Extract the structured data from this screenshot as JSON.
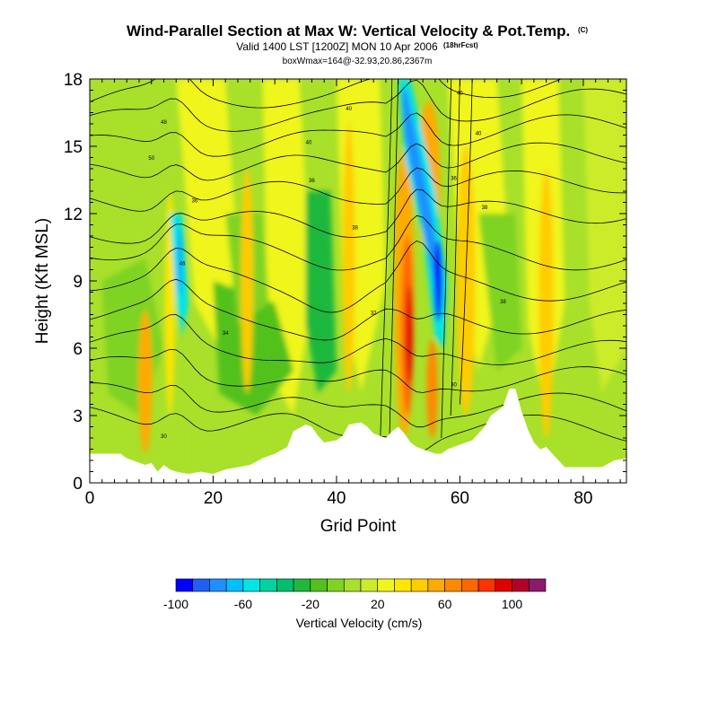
{
  "title": "Wind-Parallel Section at Max W: Vertical Velocity & Pot.Temp.",
  "title_mark": "(C)",
  "subtitle": "Valid 1400 LST [1200Z] MON 10 Apr 2006",
  "subtitle_mark": "(18hrFcst)",
  "subtitle2": "boxWmax=164@-32.93,20.86,2367m",
  "chart_data": {
    "type": "heatmap",
    "xlabel": "Grid Point",
    "ylabel": "Height (Kft MSL)",
    "xlim": [
      0,
      87
    ],
    "ylim": [
      0,
      18
    ],
    "xticks": [
      0,
      20,
      40,
      60,
      80
    ],
    "yticks": [
      0,
      3,
      6,
      9,
      12,
      15,
      18
    ],
    "colorbar": {
      "label": "Vertical Velocity (cm/s)",
      "tick_labels": [
        "-100",
        "-60",
        "-20",
        "20",
        "60",
        "100"
      ],
      "tick_values": [
        -100,
        -60,
        -20,
        20,
        60,
        100
      ],
      "bins": [
        -100,
        -90,
        -80,
        -70,
        -60,
        -50,
        -40,
        -30,
        -20,
        -10,
        0,
        10,
        20,
        30,
        40,
        50,
        60,
        70,
        80,
        90,
        100,
        110,
        120
      ],
      "colors": [
        "#0000ff",
        "#1e5ff5",
        "#1e90ff",
        "#00bfff",
        "#00e5e5",
        "#00d2a0",
        "#00c070",
        "#1fb83c",
        "#52c11e",
        "#7fd321",
        "#a8e02a",
        "#ccec2a",
        "#f0f51e",
        "#ffe600",
        "#ffcc00",
        "#ffaa00",
        "#ff8800",
        "#ff6600",
        "#ff3300",
        "#e00000",
        "#b40028",
        "#8b1a6b"
      ]
    },
    "terrain_kft": [
      [
        0,
        1.3
      ],
      [
        5,
        1.3
      ],
      [
        6,
        1.1
      ],
      [
        8,
        0.9
      ],
      [
        9,
        0.8
      ],
      [
        10,
        0.9
      ],
      [
        11,
        0.5
      ],
      [
        12,
        0.8
      ],
      [
        13,
        0.6
      ],
      [
        14,
        0.5
      ],
      [
        16,
        0.4
      ],
      [
        18,
        0.5
      ],
      [
        20,
        0.4
      ],
      [
        22,
        0.6
      ],
      [
        24,
        0.7
      ],
      [
        26,
        0.8
      ],
      [
        28,
        1.1
      ],
      [
        30,
        1.3
      ],
      [
        32,
        1.6
      ],
      [
        33,
        2.3
      ],
      [
        35,
        2.6
      ],
      [
        36,
        2.5
      ],
      [
        37,
        2.1
      ],
      [
        38,
        1.8
      ],
      [
        40,
        1.9
      ],
      [
        41,
        2.1
      ],
      [
        42,
        2.6
      ],
      [
        44,
        2.7
      ],
      [
        45,
        2.5
      ],
      [
        46,
        2.2
      ],
      [
        48,
        2.0
      ],
      [
        49,
        2.3
      ],
      [
        50,
        2.5
      ],
      [
        51,
        2.2
      ],
      [
        52,
        1.8
      ],
      [
        53,
        1.6
      ],
      [
        55,
        1.4
      ],
      [
        56,
        1.3
      ],
      [
        57,
        1.3
      ],
      [
        58,
        1.5
      ],
      [
        60,
        1.7
      ],
      [
        62,
        1.9
      ],
      [
        64,
        2.5
      ],
      [
        65,
        3.0
      ],
      [
        66,
        3.2
      ],
      [
        67,
        3.4
      ],
      [
        68,
        4.2
      ],
      [
        69,
        4.2
      ],
      [
        70,
        3.2
      ],
      [
        71,
        2.4
      ],
      [
        72,
        1.8
      ],
      [
        73,
        1.5
      ],
      [
        74,
        1.6
      ],
      [
        75,
        1.3
      ],
      [
        77,
        0.7
      ],
      [
        80,
        0.7
      ],
      [
        83,
        0.7
      ],
      [
        85,
        1.0
      ],
      [
        87,
        1.1
      ]
    ],
    "isentrope_labels": [
      {
        "x": 12.0,
        "y": 16.0,
        "text": "48"
      },
      {
        "x": 10.0,
        "y": 14.4,
        "text": "50"
      },
      {
        "x": 17.0,
        "y": 12.5,
        "text": "36"
      },
      {
        "x": 15.0,
        "y": 9.7,
        "text": "46"
      },
      {
        "x": 22.0,
        "y": 6.6,
        "text": "34"
      },
      {
        "x": 42.0,
        "y": 16.6,
        "text": "40"
      },
      {
        "x": 35.5,
        "y": 15.1,
        "text": "40"
      },
      {
        "x": 36.0,
        "y": 13.4,
        "text": "36"
      },
      {
        "x": 43.0,
        "y": 11.3,
        "text": "38"
      },
      {
        "x": 46.0,
        "y": 7.5,
        "text": "32"
      },
      {
        "x": 60.0,
        "y": 17.3,
        "text": "40"
      },
      {
        "x": 63.0,
        "y": 15.5,
        "text": "40"
      },
      {
        "x": 59.0,
        "y": 13.5,
        "text": "36"
      },
      {
        "x": 64.0,
        "y": 12.2,
        "text": "38"
      },
      {
        "x": 67.0,
        "y": 8.0,
        "text": "38"
      },
      {
        "x": 59.0,
        "y": 4.3,
        "text": "30"
      },
      {
        "x": 12.0,
        "y": 2.0,
        "text": "30"
      }
    ]
  }
}
